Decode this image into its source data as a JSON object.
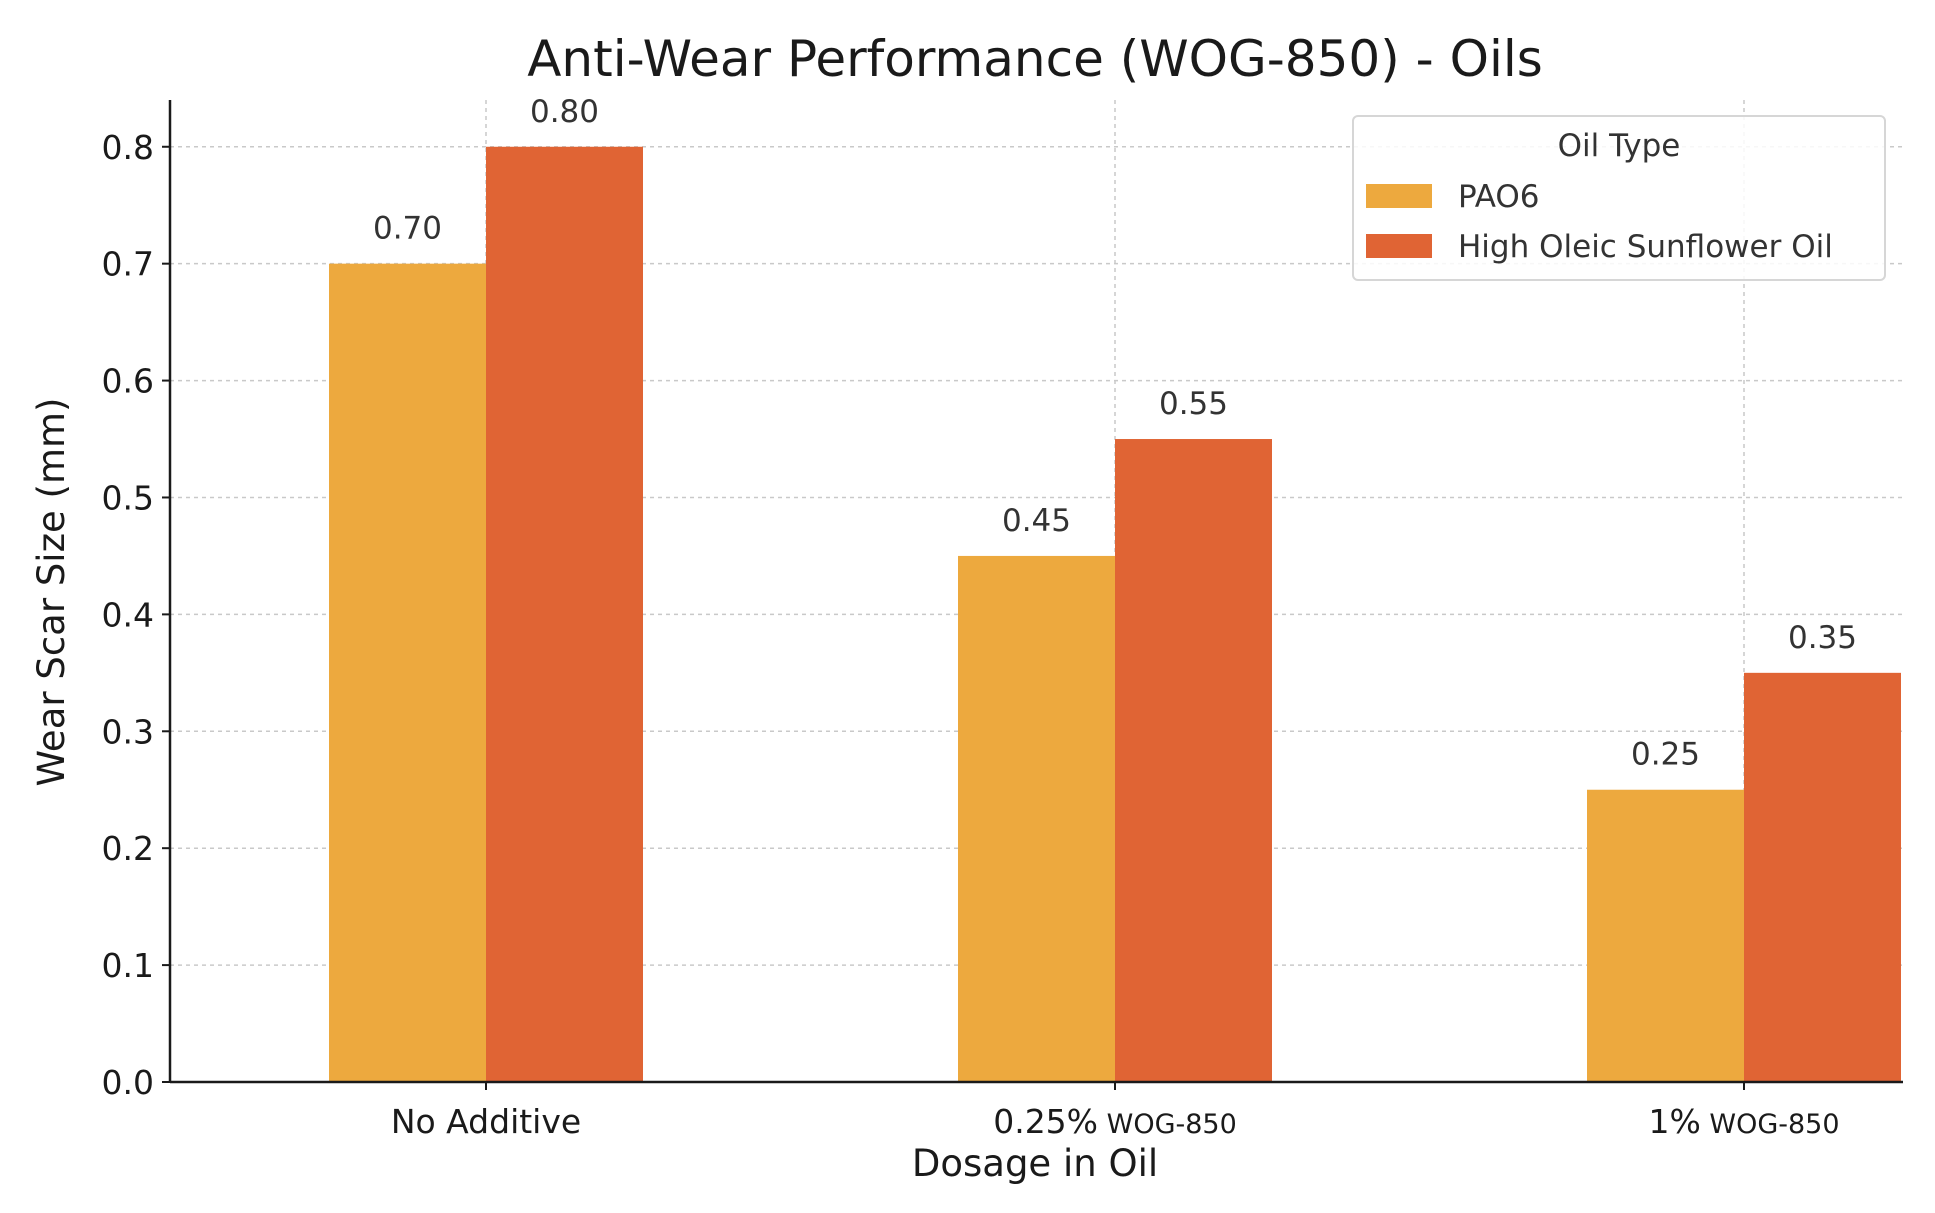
{
  "colors": {
    "pao6": "#EDA93E",
    "sunflower": "#E06434",
    "grid": "#c9c9c9",
    "text": "#1a1a1a"
  },
  "chart_data": {
    "type": "bar",
    "title": "Anti-Wear Performance (WOG-850) - Oils",
    "xlabel": "Dosage in Oil",
    "ylabel": "Wear Scar Size (mm)",
    "categories": [
      {
        "main": "No Additive",
        "suffix": ""
      },
      {
        "main": "0.25%",
        "suffix": "WOG-850"
      },
      {
        "main": "1%",
        "suffix": "WOG-850"
      }
    ],
    "series": [
      {
        "name": "PAO6",
        "values": [
          0.7,
          0.45,
          0.25
        ],
        "labels": [
          "0.70",
          "0.45",
          "0.25"
        ],
        "color": "#EDA93E"
      },
      {
        "name": "High Oleic Sunflower Oil",
        "values": [
          0.8,
          0.55,
          0.35
        ],
        "labels": [
          "0.80",
          "0.55",
          "0.35"
        ],
        "color": "#E06434"
      }
    ],
    "ylim": [
      0,
      0.84
    ],
    "yticks": [
      "0.0",
      "0.1",
      "0.2",
      "0.3",
      "0.4",
      "0.5",
      "0.6",
      "0.7",
      "0.8"
    ],
    "grid": true,
    "legend": {
      "title": "Oil Type",
      "placement": "top-right"
    }
  }
}
